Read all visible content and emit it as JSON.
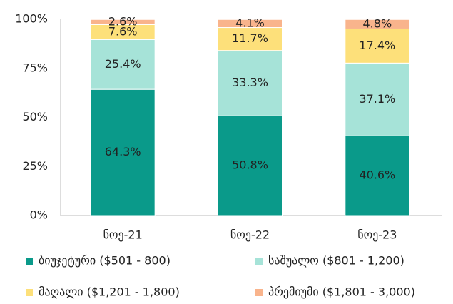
{
  "chart_data": {
    "type": "stacked_bar",
    "categories": [
      "ნოე-21",
      "ნოე-22",
      "ნოე-23"
    ],
    "series": [
      {
        "name": "ბიუჯეტური ($501 - 800)",
        "color": "#0a9a8a",
        "values": [
          64.3,
          50.8,
          40.6
        ],
        "value_labels": [
          "64.3%",
          "50.8%",
          "40.6%"
        ]
      },
      {
        "name": "საშუალო ($801 - 1,200)",
        "color": "#a6e3d8",
        "values": [
          25.4,
          33.3,
          37.1
        ],
        "value_labels": [
          "25.4%",
          "33.3%",
          "37.1%"
        ]
      },
      {
        "name": "მაღალი ($1,201 - 1,800)",
        "color": "#fde07a",
        "values": [
          7.6,
          11.7,
          17.4
        ],
        "value_labels": [
          "7.6%",
          "11.7%",
          "17.4%"
        ]
      },
      {
        "name": "პრემიუმი ($1,801 - 3,000)",
        "color": "#f9b48c",
        "values": [
          2.6,
          4.1,
          4.8
        ],
        "value_labels": [
          "2.6%",
          "4.1%",
          "4.8%"
        ]
      }
    ],
    "ylim": [
      0,
      100
    ],
    "yticks": [
      {
        "value": 0,
        "label": "0%"
      },
      {
        "value": 25,
        "label": "25%"
      },
      {
        "value": 50,
        "label": "50%"
      },
      {
        "value": 75,
        "label": "75%"
      },
      {
        "value": 100,
        "label": "100%"
      }
    ],
    "grid": false
  }
}
